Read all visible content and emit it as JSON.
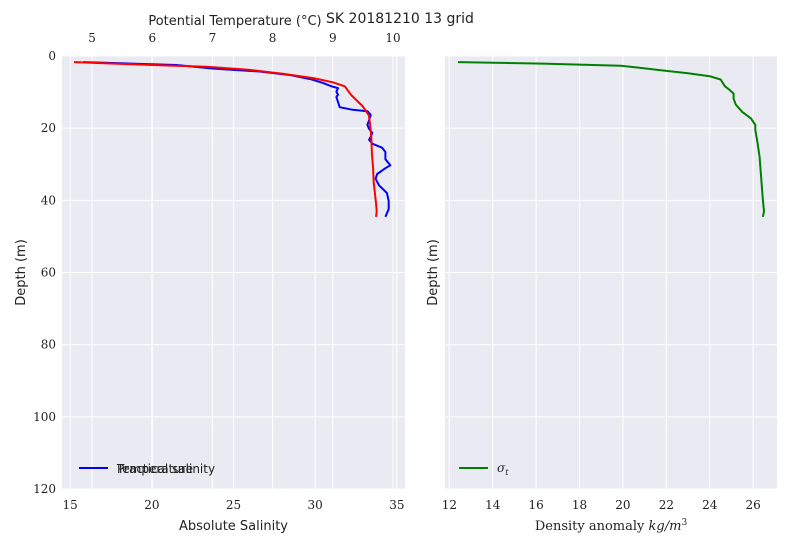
{
  "chart_data": [
    {
      "type": "line",
      "title": "SK 20181210 13 grid",
      "xlabel": "Absolute Salinity",
      "ylabel": "Depth (m)",
      "xlim": [
        14.5,
        35.5
      ],
      "ylim": [
        120,
        0
      ],
      "xticks": [
        15,
        20,
        25,
        30,
        35
      ],
      "yticks": [
        0,
        20,
        40,
        60,
        80,
        100,
        120
      ],
      "grid": true,
      "legend": "lower left",
      "secondary_x": {
        "label": "Potential Temperature (°C)",
        "lim": [
          4.5,
          10.2
        ],
        "ticks": [
          5,
          6,
          7,
          8,
          9,
          10
        ]
      },
      "series": [
        {
          "name": "Practical salinity",
          "axis": "bottom",
          "color": "#0000ff",
          "x": [
            15.8,
            21.5,
            23.8,
            26.6,
            28.5,
            29.7,
            30.5,
            31.0,
            31.4,
            31.3,
            31.4,
            31.3,
            31.5,
            32.3,
            33.2,
            33.4,
            33.3,
            33.2,
            33.3,
            33.5,
            33.4,
            33.3,
            33.5,
            34.1,
            34.3,
            34.3,
            34.6,
            34.3,
            33.8,
            33.7,
            33.9,
            34.4,
            34.5,
            34.5,
            34.3
          ],
          "y": [
            1.7,
            2.5,
            3.5,
            4.3,
            5.3,
            6.4,
            7.5,
            8.4,
            8.9,
            9.9,
            10.7,
            11.4,
            14.2,
            14.9,
            15.3,
            16.3,
            17.8,
            19.1,
            20.2,
            21.3,
            22.4,
            23.2,
            24.3,
            25.4,
            26.6,
            28.6,
            30.3,
            31.1,
            32.7,
            34.0,
            35.8,
            38.0,
            40.3,
            42.4,
            44.6
          ]
        },
        {
          "name": "Temperature",
          "axis": "top",
          "color": "#ff0000",
          "x": [
            4.7,
            6.0,
            6.9,
            7.6,
            8.2,
            8.7,
            9.0,
            9.2,
            9.3,
            9.5,
            9.6,
            9.62,
            9.64,
            9.65,
            9.67,
            9.68,
            9.7,
            9.72,
            9.73,
            9.72
          ],
          "y": [
            1.7,
            2.5,
            3.0,
            3.8,
            5.0,
            6.2,
            7.3,
            8.4,
            10.7,
            14.0,
            16.5,
            19.0,
            22.5,
            27.0,
            31.0,
            35.0,
            38.0,
            41.0,
            43.0,
            44.6
          ]
        }
      ],
      "legend_labels": [
        "Practical salinity",
        "Temperature"
      ]
    },
    {
      "type": "line",
      "title": "",
      "xlabel": "Density anomaly kg/m3",
      "ylabel": "Depth (m)",
      "xlim": [
        11.8,
        27.1
      ],
      "ylim": [
        120,
        0
      ],
      "xticks": [
        12,
        14,
        16,
        18,
        20,
        22,
        24,
        26
      ],
      "yticks": [
        0,
        20,
        40,
        60,
        80,
        100,
        120
      ],
      "grid": true,
      "legend": "lower left",
      "series": [
        {
          "name": "σt",
          "color": "#008000",
          "x": [
            12.4,
            16.3,
            19.9,
            21.7,
            23.0,
            24.0,
            24.5,
            24.7,
            24.85,
            25.1,
            25.1,
            25.2,
            25.5,
            25.9,
            26.1,
            26.1,
            26.2,
            26.3,
            26.35,
            26.4,
            26.45,
            26.5,
            26.45
          ],
          "y": [
            1.7,
            2.1,
            2.7,
            3.9,
            4.8,
            5.6,
            6.5,
            8.4,
            9.1,
            10.4,
            11.8,
            13.5,
            15.5,
            17.3,
            19.1,
            20.5,
            24.0,
            28.0,
            32.0,
            36.0,
            40.0,
            43.0,
            44.6
          ]
        }
      ]
    }
  ]
}
